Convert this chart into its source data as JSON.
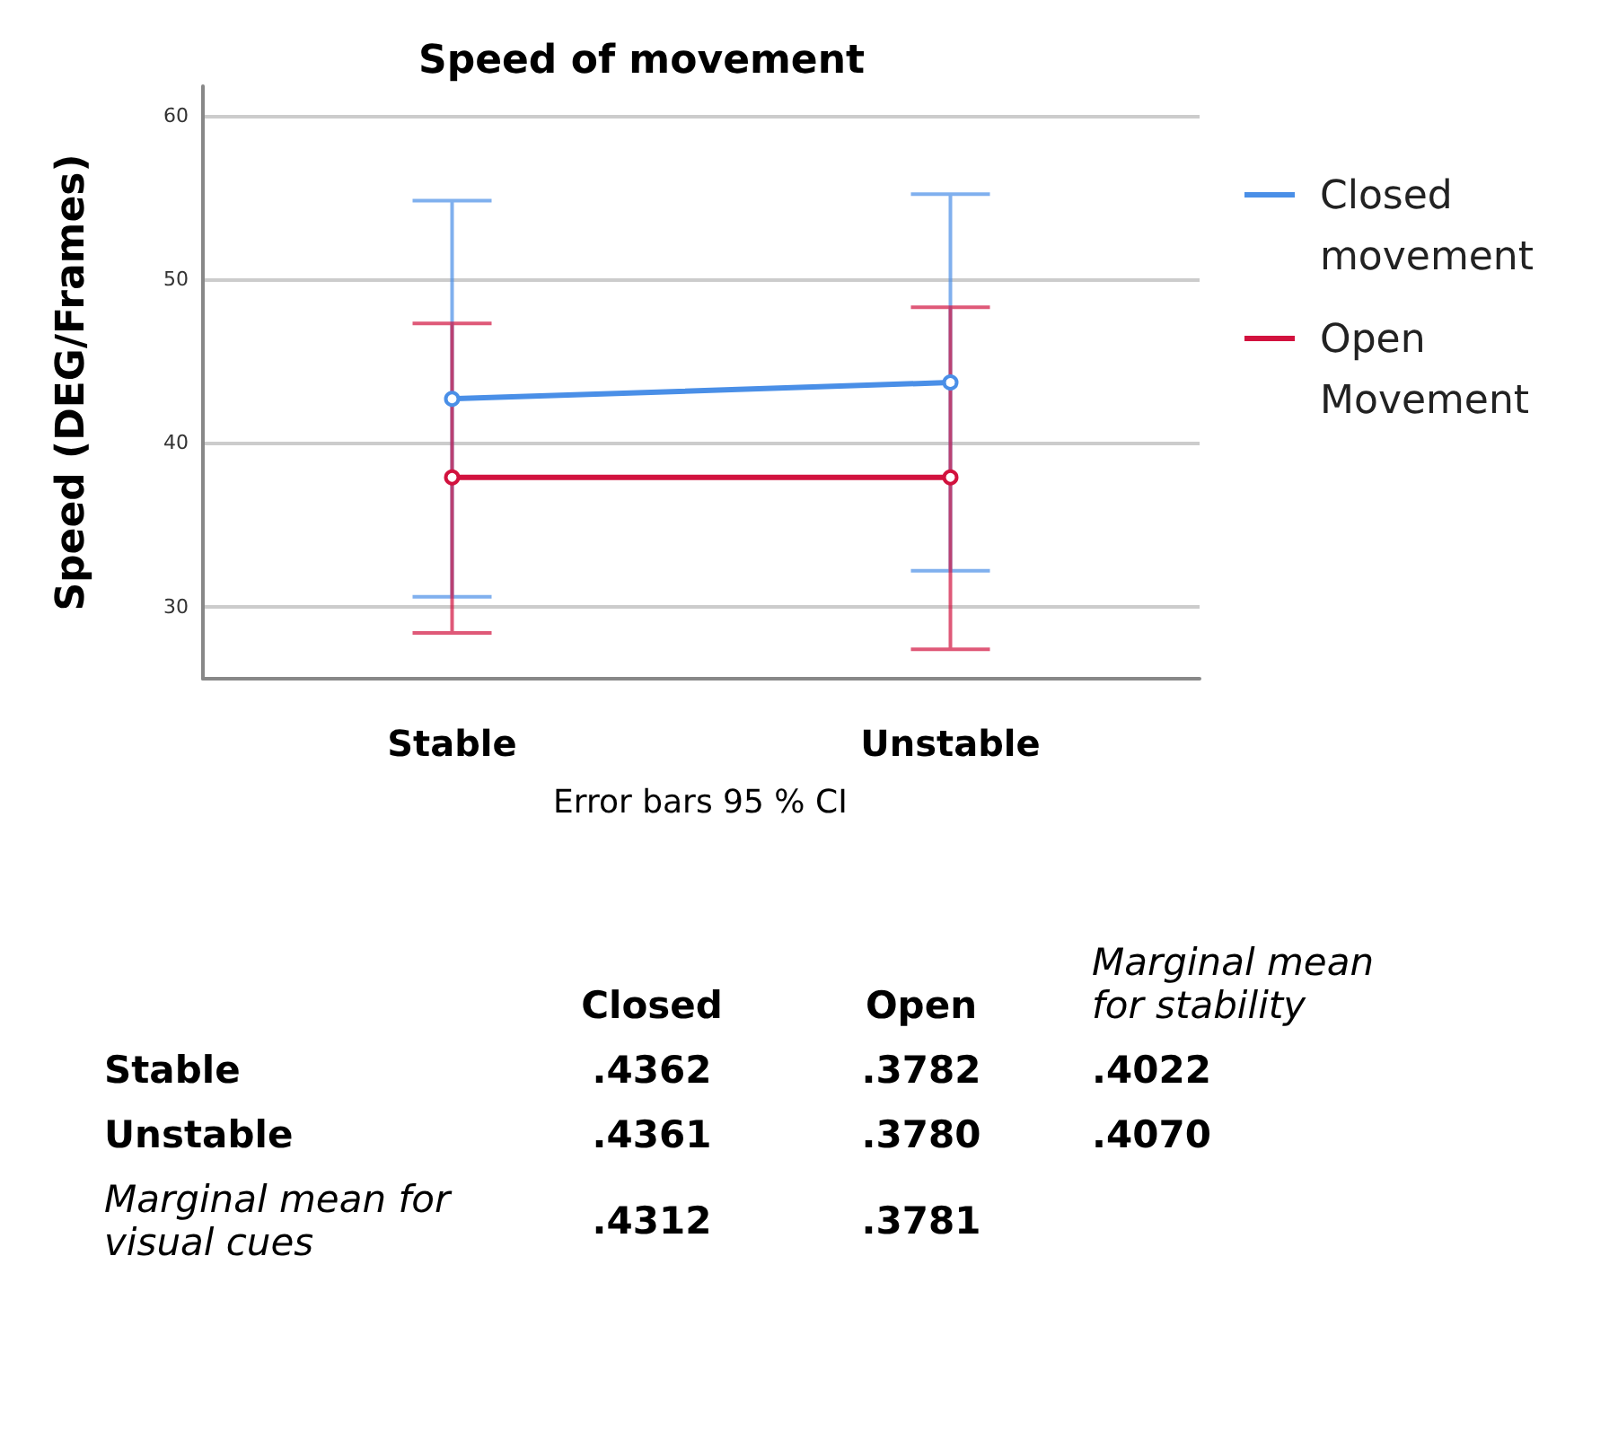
{
  "chart_data": [
    {
      "type": "line",
      "title": "Speed of movement",
      "ylabel": "Speed (DEG/Frames)",
      "categories": [
        "Stable",
        "Unstable"
      ],
      "series": [
        {
          "name": "Closed movement",
          "color": "#4a8fe7",
          "values": [
            42.7,
            43.7
          ],
          "errors": [
            [
              30.6,
              54.8
            ],
            [
              32.2,
              55.2
            ]
          ]
        },
        {
          "name": "Open Movement",
          "color": "#d2123e",
          "values": [
            37.9,
            37.9
          ],
          "errors": [
            [
              28.4,
              47.3
            ],
            [
              27.4,
              48.3
            ]
          ]
        }
      ],
      "ylim": [
        25.6,
        61.8
      ],
      "yticks": [
        30,
        40,
        50,
        60
      ],
      "grid": "y",
      "legend": "right",
      "marker": "circle",
      "line_style": "solid",
      "annotations": [
        "Error bars 95 % CI"
      ]
    },
    {
      "type": "other",
      "categories": [
        "Closed",
        "Open",
        "Marginal mean for stability"
      ],
      "y_categories": [
        "Stable",
        "Unstable",
        "Marginal mean for visual cues"
      ],
      "cell_labels": [
        [
          ".4362",
          ".3782",
          ".4022"
        ],
        [
          ".4361",
          ".3780",
          ".4070"
        ],
        [
          ".4312",
          ".3781",
          null
        ]
      ]
    }
  ]
}
